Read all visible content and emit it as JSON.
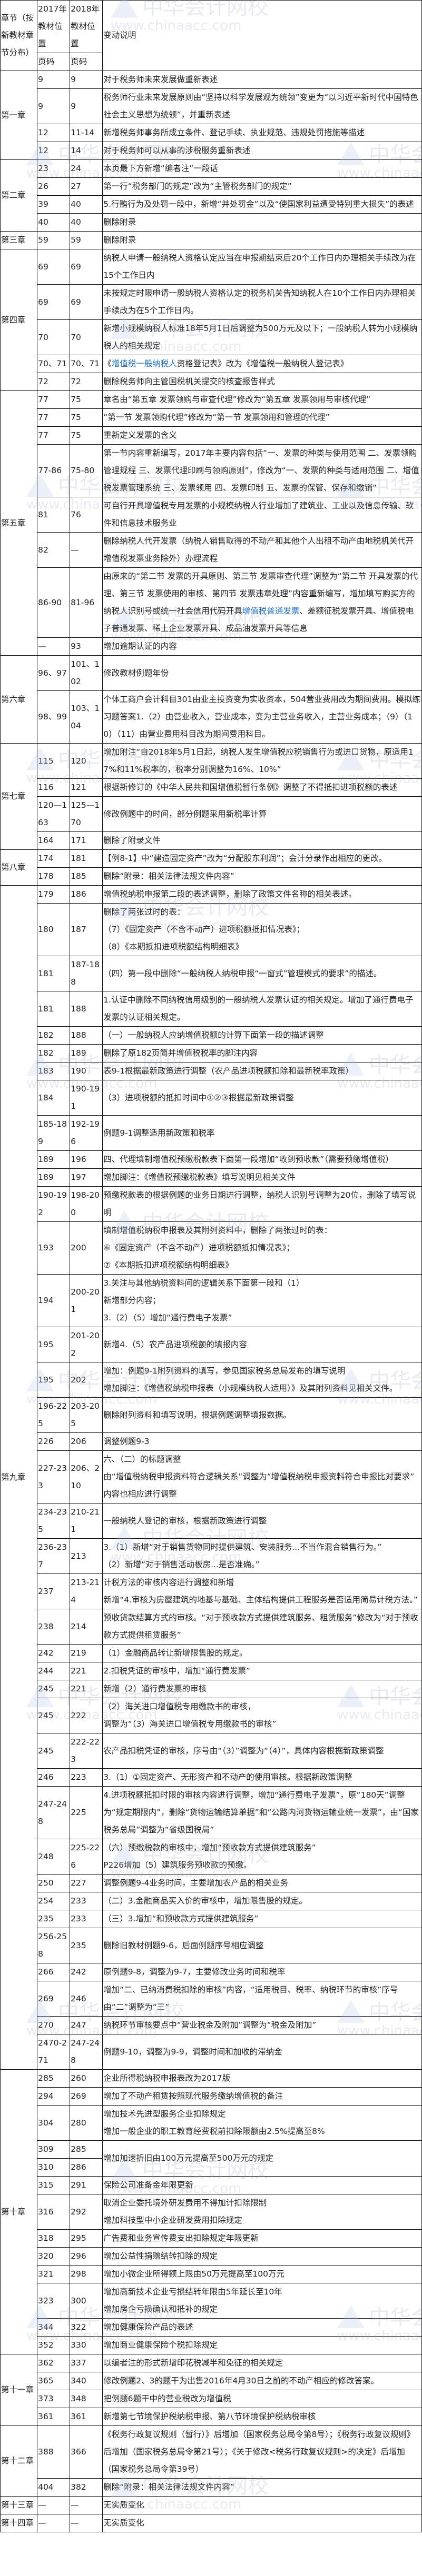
{
  "header": {
    "chapter": "章节（按新教材章节分布）",
    "pos2017": "2017年教材位置",
    "pos2018": "2018年教材位置",
    "page2017": "页码",
    "page2018": "页码",
    "desc": "变动说明"
  },
  "watermark": {
    "name": "中华会计网校",
    "url": "www.chinaacc.com"
  },
  "colors": {
    "link": "#1a6fc9",
    "border": "#111111"
  },
  "chapters": [
    {
      "name": "第一章",
      "rows": [
        {
          "p17": "9",
          "p18": "9",
          "desc": [
            "对于税务师未来发展做重新表述"
          ]
        },
        {
          "p17": "9",
          "p18": "9",
          "desc": [
            "税务师行业未来发展原则由“坚持以科学发展观为统领”变更为“以习近平新时代中国特色社会主义思想为统领”，并重新表述"
          ]
        },
        {
          "p17": "12",
          "p18": "11-14",
          "desc": [
            "新增税务师事务所成立条件、登记手续、执业规范、违规处罚措施等描述"
          ]
        },
        {
          "p17": "12",
          "p18": "14",
          "desc": [
            "对于税务师可以从事的涉税服务重新表述"
          ]
        }
      ]
    },
    {
      "name": "第二章",
      "rows": [
        {
          "p17": "23",
          "p18": "24",
          "desc": [
            "本页最下方新增“编者注”一段话"
          ]
        },
        {
          "p17": "26",
          "p18": "27",
          "desc": [
            "第一行“税务部门的规定”改为“主管税务部门的规定”"
          ]
        },
        {
          "p17": "39",
          "p18": "40",
          "desc": [
            "5.行贿行为及处罚一段中，新增“并处罚金”以及“使国家利益遭受特别重大损失”的表述"
          ]
        },
        {
          "p17": "40",
          "p18": "40",
          "desc": [
            "删除附录"
          ]
        }
      ]
    },
    {
      "name": "第三章",
      "rows": [
        {
          "p17": "59",
          "p18": "59",
          "desc": [
            "删除附录"
          ]
        }
      ]
    },
    {
      "name": "第四章",
      "rows": [
        {
          "p17": "69",
          "p18": "69",
          "desc": [
            "纳税人申请一般纳税人资格认定应当在申报期结束后20个工作日内办理相关手续改为在15个工作日内"
          ]
        },
        {
          "p17": "69",
          "p18": "69",
          "desc": [
            "未按规定时限申请一般纳税人资格认定的税务机关告知纳税人在10个工作日内办理相关手续改为在5个工作日内。"
          ]
        },
        {
          "p17": "70",
          "p18": "70",
          "desc": [
            "新增小规模纳税人标准18年5月1日后调整为500万元及以下；一般纳税人转为小规模纳税人的相关规定"
          ]
        },
        {
          "p17": "70、71",
          "p18": "70、71",
          "desc": [
            [
              {
                "t": "《"
              },
              {
                "t": "增值税一般纳税人",
                "link": true
              },
              {
                "t": "资格登记表》改为《增值税一般纳税人登记表》"
              }
            ]
          ]
        },
        {
          "p17": "72",
          "p18": "72",
          "desc": [
            "删除税务师向主管国税机关提交的核查报告样式"
          ]
        }
      ]
    },
    {
      "name": "第五章",
      "rows": [
        {
          "p17": "77",
          "p18": "75",
          "desc": [
            "章名由“第五章 发票领购与审查代理”修改为“第五章 发票领用与审核代理”"
          ]
        },
        {
          "p17": "77",
          "p18": "75",
          "desc": [
            "“第一节 发票领购代理”修改为“第一节 发票领用和管理的代理”"
          ]
        },
        {
          "p17": "77",
          "p18": "75",
          "desc": [
            "重新定义发票的含义"
          ]
        },
        {
          "p17": "77-86",
          "p18": "75-80",
          "desc": [
            "第一节内容重新编写，2017年主要内容包括“一、发票的种类与使用范围 二、发票领购管理规程 三、发票代理印刷与领购原则”，修改为“一、发票的种类与适用范围 二、增值税发票管理系统 三、发票领用 四、发票印制 五、发票的保管、保存和缴销”"
          ]
        },
        {
          "p17": "81",
          "p18": "76",
          "desc": [
            "可自行开具增值税专用发票的小规模纳税人行业增加了建筑业、工业以及信息传输、软件和信息技术服务业"
          ]
        },
        {
          "p17": "82",
          "p18": "—",
          "desc": [
            "删除纳税人代开发票（纳税人销售取得的不动产和其他个人出租不动产由地税机关代开增值税发票业务除外）办理流程"
          ]
        },
        {
          "p17": "86-90",
          "p18": "81-96",
          "desc": [
            [
              {
                "t": "由原来的“第二节 发票的开具原则、第三节 发票审查代理”调整为“第二节 开具发票的代理、第三节 发票使用的审核、第四节 发票违章处理”内容重新编写，增加填写购买方的纳税人识别号或统一社会信用代码开具"
              },
              {
                "t": "增值税普通发票",
                "link": true
              },
              {
                "t": "、差额征税发票开具、增值税电子普通发票、稀土企业发票开具、成品油发票开具等信息"
              }
            ]
          ]
        },
        {
          "p17": "—",
          "p18": "93",
          "desc": [
            "增加逾期认证的内容"
          ]
        }
      ]
    },
    {
      "name": "第六章",
      "rows": [
        {
          "p17": "96、97",
          "p18": "101、102",
          "desc": [
            "修改教材例题年份"
          ]
        },
        {
          "p17": "98、99",
          "p18": "103、104",
          "desc": [
            "个体工商户会计科目301由业主投资变为实收资本，504营业费用改为期间费用。模拟练习题答案1.（2）由营业收入，营业成本，变为主营业务收入，主营业务成本；（9）（10）（11）由营业费用科目改为期间费用科目。"
          ]
        }
      ]
    },
    {
      "name": "第七章",
      "rows": [
        {
          "p17": "115",
          "p18": "120",
          "desc": [
            "增加附注“自2018年5月1日起，纳税人发生增值税应税销售行为或进口货物，原适用17%和11%税率的，税率分别调整为16%、10%”"
          ]
        },
        {
          "p17": "116",
          "p18": "121",
          "desc": [
            "根据新修订的《中华人民共和国增值税暂行条例》调整了不得抵扣进项税额的表述"
          ]
        },
        {
          "p17": "120—163",
          "p18": "125—170",
          "desc": [
            "修改例题中的时间，部分例题采用新税率计算"
          ]
        },
        {
          "p17": "164",
          "p18": "171",
          "desc": [
            "删除了附录文件"
          ]
        }
      ]
    },
    {
      "name": "第八章",
      "rows": [
        {
          "p17": "174",
          "p18": "181",
          "desc": [
            "【例8-1】中“建造固定资产”改为“分配股东利润”；会计分录作出相应的更改。"
          ]
        },
        {
          "p17": "178",
          "p18": "185",
          "desc": [
            "删除“附录：相关法律法规文件内容”"
          ]
        }
      ]
    },
    {
      "name": "第九章",
      "rows": [
        {
          "p17": "179",
          "p18": "186",
          "desc": [
            "增值税纳税申报第二段的表述调整，删除了政策文件名称的相关表述。"
          ]
        },
        {
          "p17": "180",
          "p18": "187",
          "desc": [
            "删除了两张过时的表：",
            "（7）《固定资产（不含不动产）进项税额抵扣情况表》；",
            "（8）《本期抵扣进项税额结构明细表》"
          ]
        },
        {
          "p17": "181",
          "p18": "187-188",
          "desc": [
            "（四）第一段中删除“一般纳税人纳税申报“一窗式”管理模式的要求”的描述。"
          ]
        },
        {
          "p17": "181",
          "p18": "188",
          "desc": [
            "1.认证中删除不同纳税信用级别的一般纳税人发票认证的相关规定。增加了通行费电子发票的认证相关规定。"
          ]
        },
        {
          "p17": "182",
          "p18": "188",
          "desc": [
            "（一）一般纳税人应纳增值税额的计算下面第一段的描述调整"
          ]
        },
        {
          "p17": "182",
          "p18": "189",
          "desc": [
            "删除了原182页简并增值税税率的脚注内容"
          ]
        },
        {
          "p17": "183",
          "p18": "190",
          "desc": [
            "表9-1根据最新政策进行调整（农产品进项税额扣除和最新税率政策）"
          ]
        },
        {
          "p17": "184",
          "p18": "190-191",
          "desc": [
            "（3）进项税额的抵扣时间中①②③根据最新政策调整"
          ]
        },
        {
          "p17": "185-189",
          "p18": "192-196",
          "desc": [
            "例题9-1调整适用新政策和税率"
          ]
        },
        {
          "p17": "189",
          "p18": "196",
          "desc": [
            "四、代理填制增值税预缴税款表下面第一段增加“收到预收款”（需要预缴增值税）"
          ]
        },
        {
          "p17": "189",
          "p18": "197",
          "desc": [
            "增加脚注：《增值税预缴税款表》填写说明见相关文件"
          ]
        },
        {
          "p17": "190-192",
          "p18": "198-200",
          "desc": [
            "预缴税款表的根据例题的业务日期进行调整，纳税人识别号调整为20位，删除了填写说明"
          ]
        },
        {
          "p17": "193",
          "p18": "200",
          "desc": [
            "填制增值税纳税申报表及其附列资料中，删除了两张过时的表：",
            "⑥《固定资产（不含不动产）进项税额抵扣情况表》；",
            "⑦《本期抵扣进项税额结构明细表》"
          ]
        },
        {
          "p17": "194",
          "p18": "200-201",
          "desc": [
            "3.关注与其他纳税资料间的逻辑关系下面第一段和（1）",
            "新增部分内容；",
            "3.（2）（5）增加“通行费电子发票”"
          ]
        },
        {
          "p17": "195",
          "p18": "201-202",
          "desc": [
            "新增4.（5）农产品进项税额的填报内容"
          ]
        },
        {
          "p17": "195",
          "p18": "202",
          "desc": [
            "增加：例题9-1附列资料的填写，参见国家税务总局发布的填写说明",
            "增加脚注：《增值税纳税申报表（小规模纳税人适用）》及其附列资料见相关文件。"
          ]
        },
        {
          "p17": "196-225",
          "p18": "203-205",
          "desc": [
            "删除附列资料和填写说明，根据例题调整填报数据。"
          ]
        },
        {
          "p17": "226",
          "p18": "206",
          "desc": [
            "调整例题9-3"
          ]
        },
        {
          "p17": "227-233",
          "p18": "206、210",
          "desc": [
            "六、（二）的标题调整",
            "由“增值税纳税申报资料符合逻辑关系”调整为“增值税纳税申报资料符合申报比对要求”",
            "内容也相应进行调整"
          ]
        },
        {
          "p17": "234-235",
          "p18": "210-211",
          "desc": [
            "一般纳税人登记的审核，根据新政策进行调整"
          ]
        },
        {
          "p17": "236-237",
          "p18": "213",
          "desc": [
            "3.（1）新增“对于销售货物同时提供建筑、安装服务...不当作混合销售行为。”",
            "（2）新增“对于销售活动板房...是否准确。”"
          ]
        },
        {
          "p17": "237",
          "p18": "213-214",
          "desc": [
            "计税方法的审核内容进行调整和新增",
            "新增“4.审核为房屋建筑的地基与基础、主体结构提供工程服务是否适用简易计税方法。”"
          ]
        },
        {
          "p17": "238",
          "p18": "214",
          "desc": [
            "预收货款结算方式的审核。“对于预收款方式提供建筑服务、租赁服务”修改为“对于预收款方式提供租赁服务”"
          ]
        },
        {
          "p17": "242",
          "p18": "219",
          "desc": [
            "（1）金融商品转让新增限售股的规定。"
          ]
        },
        {
          "p17": "244",
          "p18": "221",
          "desc": [
            "2.扣税凭证的审核中，增加“通行费发票”"
          ]
        },
        {
          "p17": "245",
          "p18": "221",
          "desc": [
            "新增（2）通行费发票的审核"
          ]
        },
        {
          "p17": "245",
          "p18": "222",
          "desc": [
            "（2）海关进口增值税专用缴款书的审核，",
            "调整为“（3）海关进口增值税专用缴款书的审核”"
          ]
        },
        {
          "p17": "245",
          "p18": "222-223",
          "desc": [
            "农产品扣税凭证的审核，序号由“（3）”调整为“（4）”，具体内容根据新政策调整"
          ]
        },
        {
          "p17": "246",
          "p18": "223",
          "desc": [
            "3.（1）①固定资产、无形资产和不动产的使用审核。根据新政策调整"
          ]
        },
        {
          "p17": "247-248",
          "p18": "225",
          "desc": [
            "4.进项税额抵扣时限的审核内容进行调整，增加“通行费电子发票”，原“180天”调整为“规定期限内”，删除“货物运输结算单据”和“公路内河货物运输业统一发票”，由“国家税务总局”调整为“省级国税局”"
          ]
        },
        {
          "p17": "248",
          "p18": "225-226",
          "desc": [
            "（六）预缴税款的审核中，增加“预收款方式提供建筑服务”",
            "P226增加（5）建筑服务预收款的预缴。"
          ]
        },
        {
          "p17": "250",
          "p18": "227",
          "desc": [
            "调整例题9-4业务时间，主要增加农产品的相关业务"
          ]
        },
        {
          "p17": "254",
          "p18": "233",
          "desc": [
            "（二）3.金融商品买入价的审核中，增加限售股的规定。"
          ]
        },
        {
          "p17": "235",
          "p18": "233",
          "desc": [
            "（三）3.增加“和预收款方式提供建筑服务”"
          ]
        },
        {
          "p17": "256-258",
          "p18": "235",
          "desc": [
            "删除旧教材例题9-6，后面例题序号相应调整"
          ]
        },
        {
          "p17": "266",
          "p18": "242",
          "desc": [
            "原例题9-8，调整为9-7，主要修改业务时间和税率"
          ]
        },
        {
          "p17": "269",
          "p18": "246",
          "desc": [
            "增加“二、已纳消费税扣除的审核”内容，“适用税目、税率、纳税环节的审核”序号由“二”调整为“三”"
          ]
        },
        {
          "p17": "270",
          "p18": "247",
          "desc": [
            "纳税环节审核要点中“营业税金及附加”调整为“税金及附加”"
          ]
        },
        {
          "p17": "2470-271",
          "p18": "247-248",
          "desc": [
            "例题9-10，调整为9-9，调整时间和加收的滞纳金"
          ]
        }
      ]
    },
    {
      "name": "第十章",
      "rows": [
        {
          "p17": "285",
          "p18": "260",
          "desc": [
            "企业所得税纳税申报表改为2017版"
          ]
        },
        {
          "p17": "294",
          "p18": "269",
          "desc": [
            "增加了不动产租赁按照现代服务缴纳增值税的备注"
          ]
        },
        {
          "p17": "304",
          "p18": "280",
          "desc": [
            "增加技术先进型服务企业扣除规定",
            "增加一般企业的职工教育经费税前扣除限额由2.5%提高至8%"
          ]
        },
        {
          "p17": "309",
          "p18": "285",
          "desc": [
            "增加加速折旧由100万元提高至500万元的规定"
          ],
          "sub": [
            {
              "p17": "310",
              "p18": "286"
            }
          ]
        },
        {
          "p17": "315",
          "p18": "291",
          "desc": [
            "保险公司准备金年限更新"
          ]
        },
        {
          "p17": "316",
          "p18": "292",
          "desc": [
            "取消企业委托境外研发费用不得加计扣除限制",
            "增加科技型中小企业研发费用扣除规定"
          ]
        },
        {
          "p17": "318",
          "p18": "295",
          "desc": [
            "广告费和业务宣传费支出扣除规定年限更新"
          ]
        },
        {
          "p17": "320",
          "p18": "296",
          "desc": [
            "增加公益性捐赠结转扣除的规定"
          ]
        },
        {
          "p17": "321",
          "p18": "298",
          "desc": [
            "增加小微企业所得额上限由50万元提高至100万元"
          ]
        },
        {
          "p17": "323",
          "p18": "300",
          "desc": [
            "增加高新技术企业亏损结转年限由5年延长至10年",
            "增加房企亏损确认和抵补的规定"
          ]
        },
        {
          "p17": "344",
          "p18": "322",
          "desc": [
            "增加健康保险产品的表述"
          ]
        },
        {
          "p17": "352",
          "p18": "330",
          "desc": [
            "增加商业健康保险个税扣除规定"
          ]
        }
      ]
    },
    {
      "name": "第十一章",
      "rows": [
        {
          "p17": "362",
          "p18": "337",
          "desc": [
            "以编者注的形式新增印花税减半和免征的相关规定"
          ]
        },
        {
          "p17": "365",
          "p18": "340",
          "desc": [
            "修改例题2、3的题干为出售2016年4月30日之前的不动产相应的修改答案。"
          ]
        },
        {
          "p17": "373",
          "p18": "348",
          "desc": [
            "把例题6题干中的营业税改为增值税"
          ]
        },
        {
          "p17": "361",
          "p18": "361",
          "desc": [
            "新增第七节境保护税纳税申报、第八节环境保护税纳税审核"
          ]
        }
      ]
    },
    {
      "name": "第十二章",
      "rows": [
        {
          "p17": "388",
          "p18": "366",
          "desc": [
            "《税务行政复议规则（暂行）》后增加（国家税务总局令第8号）；《税务行政复议规则》后增加（国家税务总局令第21号）；《关于修改<税务行政复议规则>的决定》后增加（国家税务总局令第39号）"
          ]
        },
        {
          "p17": "404",
          "p18": "382",
          "desc": [
            "删除“附录：相关法律法规文件内容”"
          ]
        }
      ]
    },
    {
      "name": "第十三章",
      "rows": [
        {
          "p17": "—",
          "p18": "—",
          "desc": [
            "无实质变化"
          ]
        }
      ]
    },
    {
      "name": "第十四章",
      "rows": [
        {
          "p17": "—",
          "p18": "—",
          "desc": [
            "无实质变化"
          ]
        }
      ]
    }
  ]
}
